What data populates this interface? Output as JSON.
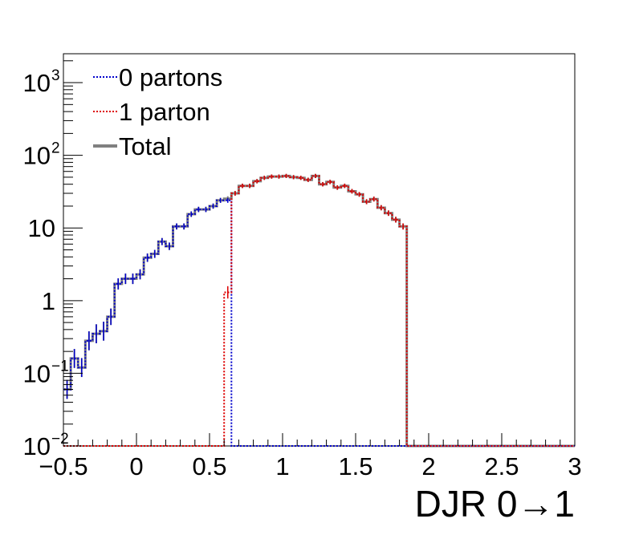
{
  "chart_data": {
    "type": "line",
    "title": "",
    "xlabel": "DJR 0→1",
    "ylabel": "",
    "xlim": [
      -0.5,
      3
    ],
    "ylim": [
      0.01,
      2500
    ],
    "ylog": true,
    "grid": false,
    "legend_position": "top-left",
    "x_ticks": [
      {
        "v": -0.5,
        "label": "−0.5"
      },
      {
        "v": 0,
        "label": "0"
      },
      {
        "v": 0.5,
        "label": "0.5"
      },
      {
        "v": 1,
        "label": "1"
      },
      {
        "v": 1.5,
        "label": "1.5"
      },
      {
        "v": 2,
        "label": "2"
      },
      {
        "v": 2.5,
        "label": "2.5"
      },
      {
        "v": 3,
        "label": "3"
      }
    ],
    "y_ticks": [
      {
        "v": 0.01,
        "base": "10",
        "exp": "−2",
        "label": ""
      },
      {
        "v": 0.1,
        "base": "10",
        "exp": "−1",
        "label": ""
      },
      {
        "v": 1,
        "base": "",
        "exp": "",
        "label": "1"
      },
      {
        "v": 10,
        "base": "",
        "exp": "",
        "label": "10"
      },
      {
        "v": 100,
        "base": "10",
        "exp": "2",
        "label": ""
      },
      {
        "v": 1000,
        "base": "10",
        "exp": "3",
        "label": ""
      }
    ],
    "bin_edges": [
      -0.5,
      -0.45,
      -0.4,
      -0.35,
      -0.3,
      -0.25,
      -0.2,
      -0.15,
      -0.1,
      -0.05,
      0,
      0.05,
      0.1,
      0.15,
      0.2,
      0.25,
      0.3,
      0.35,
      0.4,
      0.45,
      0.5,
      0.55,
      0.6,
      0.65,
      0.7,
      0.75,
      0.8,
      0.85,
      0.9,
      0.95,
      1,
      1.05,
      1.1,
      1.15,
      1.2,
      1.25,
      1.3,
      1.35,
      1.4,
      1.45,
      1.5,
      1.55,
      1.6,
      1.65,
      1.7,
      1.75,
      1.8,
      1.85,
      1.9,
      1.95,
      2,
      2.05,
      2.1,
      2.15,
      2.2,
      2.25,
      2.3,
      2.35,
      2.4,
      2.45,
      2.5,
      2.55,
      2.6,
      2.65,
      2.7,
      2.75,
      2.8,
      2.85,
      2.9,
      2.95,
      3
    ],
    "series": [
      {
        "name": "0 partons",
        "color": "#0000cc",
        "style": "dotted",
        "values": [
          0.06,
          0.16,
          0.12,
          0.28,
          0.35,
          0.38,
          0.6,
          1.7,
          2.0,
          2.0,
          2.3,
          3.9,
          4.4,
          6.5,
          5.6,
          10.5,
          10.5,
          15.5,
          18,
          18,
          20,
          24,
          24,
          0.01,
          0.01,
          0.01,
          0.01,
          0.01,
          0.01,
          0.01,
          0.01,
          0.01,
          0.01,
          0.01,
          0.01,
          0.01,
          0.01,
          0.01,
          0.01,
          0.01,
          0.01,
          0.01,
          0.01,
          0.01,
          0.01,
          0.01,
          0.01,
          0.01,
          0.01,
          0.01,
          0.01,
          0.01,
          0.01,
          0.01,
          0.01,
          0.01,
          0.01,
          0.01,
          0.01,
          0.01,
          0.01,
          0.01,
          0.01,
          0.01,
          0.01,
          0.01,
          0.01,
          0.01,
          0.01,
          0.01
        ]
      },
      {
        "name": "1 parton",
        "color": "#dd0000",
        "style": "dotted",
        "values": [
          0.01,
          0.01,
          0.01,
          0.01,
          0.01,
          0.01,
          0.01,
          0.01,
          0.01,
          0.01,
          0.01,
          0.01,
          0.01,
          0.01,
          0.01,
          0.01,
          0.01,
          0.01,
          0.01,
          0.01,
          0.01,
          0.01,
          1.3,
          30,
          38,
          38,
          44,
          49,
          51,
          51,
          52,
          50,
          49,
          46,
          52,
          40,
          43,
          36,
          38,
          32,
          29,
          23,
          25,
          19,
          16,
          13,
          10.5,
          0.01,
          0.01,
          0.01,
          0.01,
          0.01,
          0.01,
          0.01,
          0.01,
          0.01,
          0.01,
          0.01,
          0.01,
          0.01,
          0.01,
          0.01,
          0.01,
          0.01,
          0.01,
          0.01,
          0.01,
          0.01,
          0.01,
          0.01
        ]
      },
      {
        "name": "Total",
        "color": "#808080",
        "style": "solid",
        "values": [
          0.06,
          0.16,
          0.12,
          0.28,
          0.35,
          0.38,
          0.6,
          1.7,
          2.0,
          2.0,
          2.3,
          3.9,
          4.4,
          6.5,
          5.6,
          10.5,
          10.5,
          15.5,
          18,
          18,
          20,
          24,
          25.3,
          30,
          38,
          38,
          44,
          49,
          51,
          51,
          52,
          50,
          49,
          46,
          52,
          40,
          43,
          36,
          38,
          32,
          29,
          23,
          25,
          19,
          16,
          13,
          10.5,
          0.01,
          0.01,
          0.01,
          0.01,
          0.01,
          0.01,
          0.01,
          0.01,
          0.01,
          0.01,
          0.01,
          0.01,
          0.01,
          0.01,
          0.01,
          0.01,
          0.01,
          0.01,
          0.01,
          0.01,
          0.01,
          0.01,
          0.01
        ]
      }
    ]
  }
}
